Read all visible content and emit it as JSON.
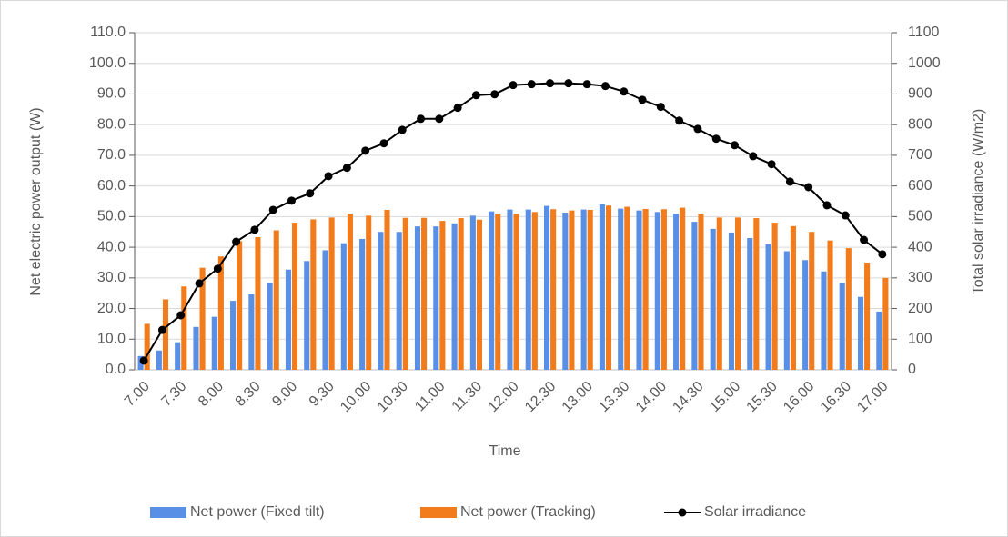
{
  "chart_data": {
    "type": "bar_line",
    "x_label": "Time",
    "y_label": "Net electric power output (W)",
    "y2_label": "Total solar irradiance (W/m2)",
    "categories": [
      "7.00",
      null,
      "7.30",
      null,
      "8.00",
      null,
      "8.30",
      null,
      "9.00",
      null,
      "9.30",
      null,
      "10.00",
      null,
      "10.30",
      null,
      "11.00",
      null,
      "11.30",
      null,
      "12.00",
      null,
      "12.30",
      null,
      "13.00",
      null,
      "13.30",
      null,
      "14.00",
      null,
      "14.30",
      null,
      "15.00",
      null,
      "15.30",
      null,
      "16.00",
      null,
      "16.30",
      null,
      "17.00"
    ],
    "series": [
      {
        "name": "Net power (Fixed tilt)",
        "type": "bar",
        "color": "#5a8fe6",
        "values": [
          4.5,
          6.3,
          9,
          14,
          17.3,
          22.5,
          24.6,
          28.3,
          32.7,
          35.5,
          39,
          41.3,
          42.7,
          45,
          45,
          46.8,
          46.8,
          47.8,
          50.3,
          51.7,
          52.3,
          52.3,
          53.5,
          51.3,
          52.3,
          54,
          52.6,
          52,
          51.5,
          50.9,
          48.3,
          46,
          44.8,
          43,
          41,
          38.7,
          35.8,
          32.1,
          28.4,
          23.8,
          19
        ]
      },
      {
        "name": "Net power (Tracking)",
        "type": "bar",
        "color": "#f27b1c",
        "values": [
          15,
          23,
          27.2,
          33.3,
          37,
          42,
          43.3,
          45.5,
          48,
          49.1,
          49.7,
          51,
          50.3,
          52.2,
          49.6,
          49.6,
          48.6,
          49.5,
          49,
          51,
          50.9,
          51.5,
          52.4,
          52,
          52.2,
          53.6,
          53.2,
          52.5,
          52.4,
          52.9,
          51,
          49.7,
          49.7,
          49.5,
          48,
          46.9,
          45,
          42.2,
          39.7,
          35,
          30
        ]
      },
      {
        "name": "Solar irradiance",
        "type": "line",
        "axis": "y2",
        "color": "#000000",
        "values": [
          30,
          130,
          178,
          282,
          330,
          418,
          457,
          522,
          552,
          576,
          632,
          659,
          715,
          739,
          783,
          819,
          819,
          855,
          896,
          899,
          929,
          932,
          935,
          935,
          932,
          926,
          908,
          881,
          858,
          813,
          786,
          754,
          733,
          697,
          671,
          614,
          596,
          537,
          504,
          424,
          377
        ]
      }
    ],
    "ylim": [
      0,
      110
    ],
    "yticks": [
      {
        "value": 0,
        "label": "0.0"
      },
      {
        "value": 10,
        "label": "10.0"
      },
      {
        "value": 20,
        "label": "20.0"
      },
      {
        "value": 30,
        "label": "30.0"
      },
      {
        "value": 40,
        "label": "40.0"
      },
      {
        "value": 50,
        "label": "50.0"
      },
      {
        "value": 60,
        "label": "60.0"
      },
      {
        "value": 70,
        "label": "70.0"
      },
      {
        "value": 80,
        "label": "80.0"
      },
      {
        "value": 90,
        "label": "90.0"
      },
      {
        "value": 100,
        "label": "100.0"
      },
      {
        "value": 110,
        "label": "110.0"
      }
    ],
    "y2lim": [
      0,
      1100
    ],
    "y2ticks": [
      0,
      100,
      200,
      300,
      400,
      500,
      600,
      700,
      800,
      900,
      1000,
      1100
    ],
    "grid": true,
    "legend": "bottom"
  }
}
